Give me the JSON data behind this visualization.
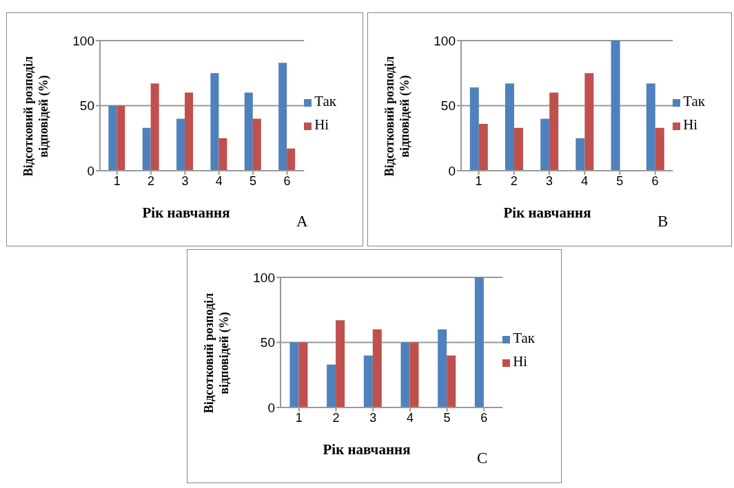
{
  "chart_data": [
    {
      "type": "bar",
      "xlabel": "Рік навчання",
      "ylabel": "Відсотковий розподіл відповідей (%)",
      "categories": [
        "1",
        "2",
        "3",
        "4",
        "5",
        "6"
      ],
      "series": [
        {
          "name": "Так",
          "color": "#4f81bd",
          "values": [
            50,
            33,
            40,
            75,
            60,
            83
          ]
        },
        {
          "name": "Ні",
          "color": "#c0504d",
          "values": [
            50,
            67,
            60,
            25,
            40,
            17
          ]
        }
      ],
      "ylim": [
        0,
        100
      ],
      "yticks": [
        0,
        50,
        100
      ],
      "grid": "y",
      "legend": "right",
      "annotations": [
        "A"
      ]
    },
    {
      "type": "bar",
      "xlabel": "Рік навчання",
      "ylabel": "Відсотковий розподіл відповідей (%)",
      "categories": [
        "1",
        "2",
        "3",
        "4",
        "5",
        "6"
      ],
      "series": [
        {
          "name": "Так",
          "color": "#4f81bd",
          "values": [
            64,
            67,
            40,
            25,
            100,
            67
          ]
        },
        {
          "name": "Ні",
          "color": "#c0504d",
          "values": [
            36,
            33,
            60,
            75,
            0,
            33
          ]
        }
      ],
      "ylim": [
        0,
        100
      ],
      "yticks": [
        0,
        50,
        100
      ],
      "grid": "y",
      "legend": "right",
      "annotations": [
        "B"
      ]
    },
    {
      "type": "bar",
      "xlabel": "Рік навчання",
      "ylabel": "Відсотковий розподіл відповідей (%)",
      "categories": [
        "1",
        "2",
        "3",
        "4",
        "5",
        "6"
      ],
      "series": [
        {
          "name": "Так",
          "color": "#4f81bd",
          "values": [
            50,
            33,
            40,
            50,
            60,
            100
          ]
        },
        {
          "name": "Ні",
          "color": "#c0504d",
          "values": [
            50,
            67,
            60,
            50,
            40,
            0
          ]
        }
      ],
      "ylim": [
        0,
        100
      ],
      "yticks": [
        0,
        50,
        100
      ],
      "grid": "y",
      "legend": "right",
      "annotations": [
        "C"
      ]
    }
  ]
}
